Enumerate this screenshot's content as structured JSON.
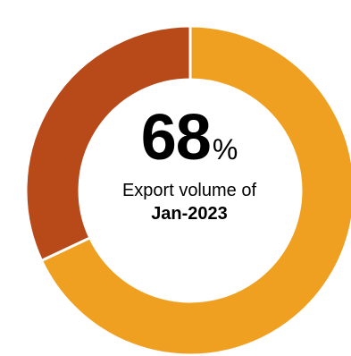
{
  "chart_data": {
    "type": "pie",
    "variant": "donut",
    "start_angle_deg": 0,
    "direction": "clockwise",
    "slices": [
      {
        "value": 68,
        "color": "#F0A020"
      },
      {
        "value": 32,
        "color": "#B84A1A"
      }
    ],
    "center_value": "68",
    "center_unit": "%",
    "caption": "Export volume of",
    "caption_period": "Jan-2023"
  }
}
